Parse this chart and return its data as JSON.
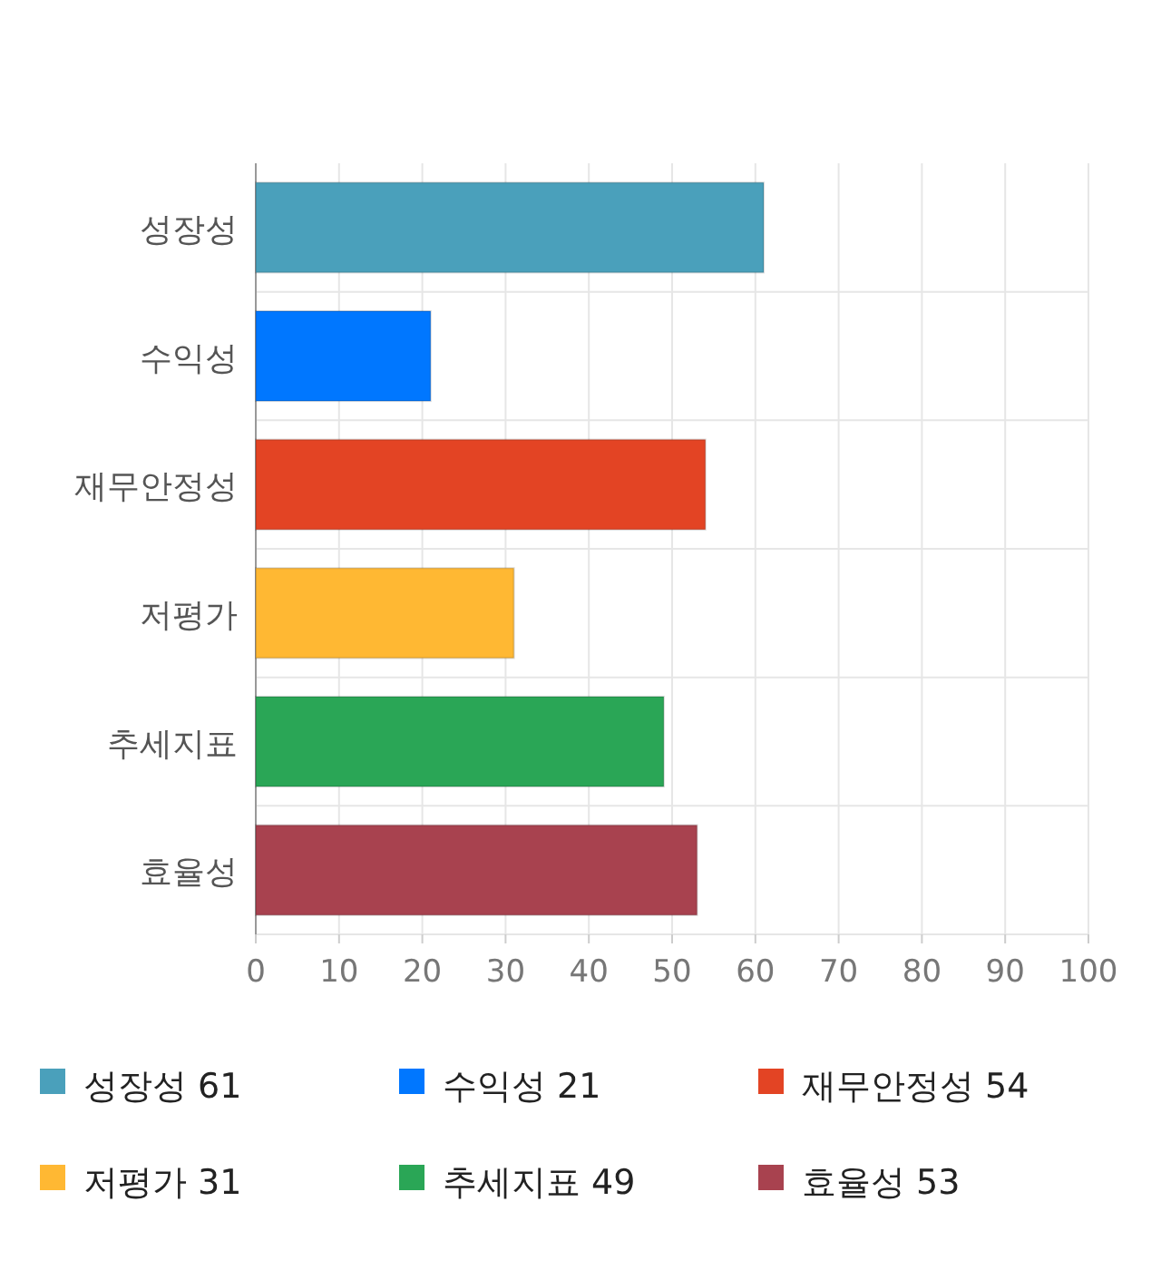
{
  "chart_data": {
    "type": "bar",
    "orientation": "horizontal",
    "stacked": true,
    "categories": [
      "성장성",
      "수익성",
      "재무안정성",
      "저평가",
      "추세지표",
      "효율성"
    ],
    "series": [
      {
        "name": "성장성 61",
        "color": "#4aa0bb",
        "values": [
          61,
          null,
          null,
          null,
          null,
          null
        ]
      },
      {
        "name": "수익성 21",
        "color": "#0077ff",
        "values": [
          null,
          21,
          null,
          null,
          null,
          null
        ]
      },
      {
        "name": "재무안정성 54",
        "color": "#e34424",
        "values": [
          null,
          null,
          54,
          null,
          null,
          null
        ]
      },
      {
        "name": "저평가 31",
        "color": "#ffb833",
        "values": [
          null,
          null,
          null,
          31,
          null,
          null
        ]
      },
      {
        "name": "추세지표 49",
        "color": "#2aa656",
        "values": [
          null,
          null,
          null,
          null,
          49,
          null
        ]
      },
      {
        "name": "효율성 53",
        "color": "#a8424f",
        "values": [
          null,
          null,
          null,
          null,
          null,
          53
        ]
      }
    ],
    "xlim": [
      0,
      100
    ],
    "xticks": [
      0,
      10,
      20,
      30,
      40,
      50,
      60,
      70,
      80,
      90,
      100
    ],
    "grid": true,
    "legend": "bottom"
  }
}
